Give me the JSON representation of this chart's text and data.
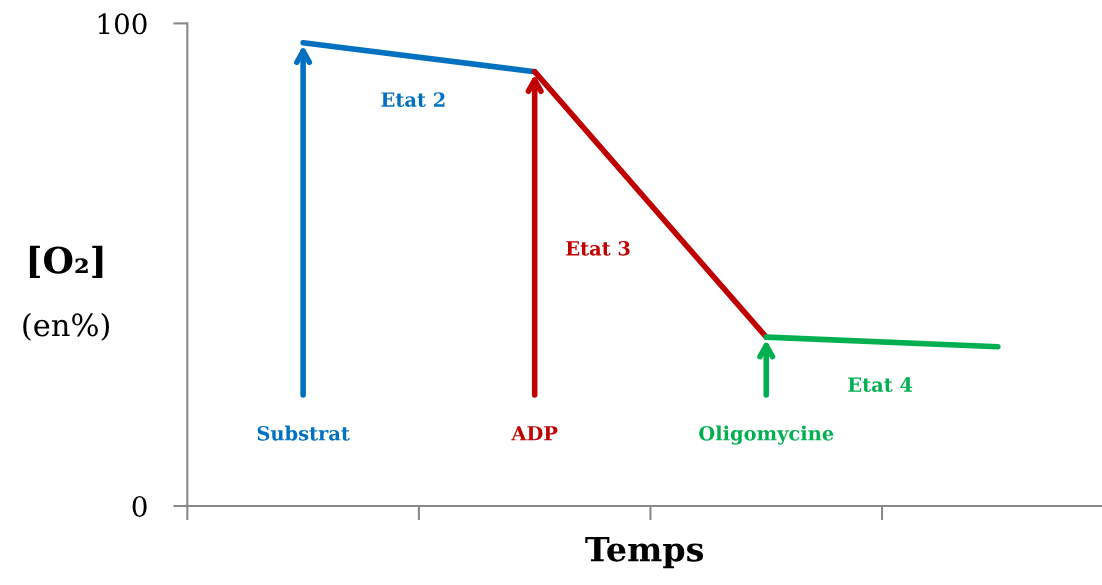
{
  "chart_data": {
    "type": "line",
    "xlabel": "Temps",
    "ylabel": "[O₂]\n(en%)",
    "categories": [
      null,
      null,
      null,
      null
    ],
    "ylim": [
      0,
      100
    ],
    "yticks": [
      0,
      100
    ],
    "grid": false,
    "legend": false,
    "marker": "none",
    "line_style": "solid",
    "series": [
      {
        "name": "Etat 2",
        "color": "#0070c0",
        "values": [
          96,
          90,
          null,
          null
        ]
      },
      {
        "name": "Etat 3",
        "color": "#c00000",
        "values": [
          null,
          90,
          35,
          null
        ]
      },
      {
        "name": "Etat 4",
        "color": "#00b050",
        "values": [
          null,
          null,
          35,
          33
        ]
      }
    ],
    "annotations": [
      "Substrat",
      "ADP",
      "Oligomycine"
    ]
  }
}
